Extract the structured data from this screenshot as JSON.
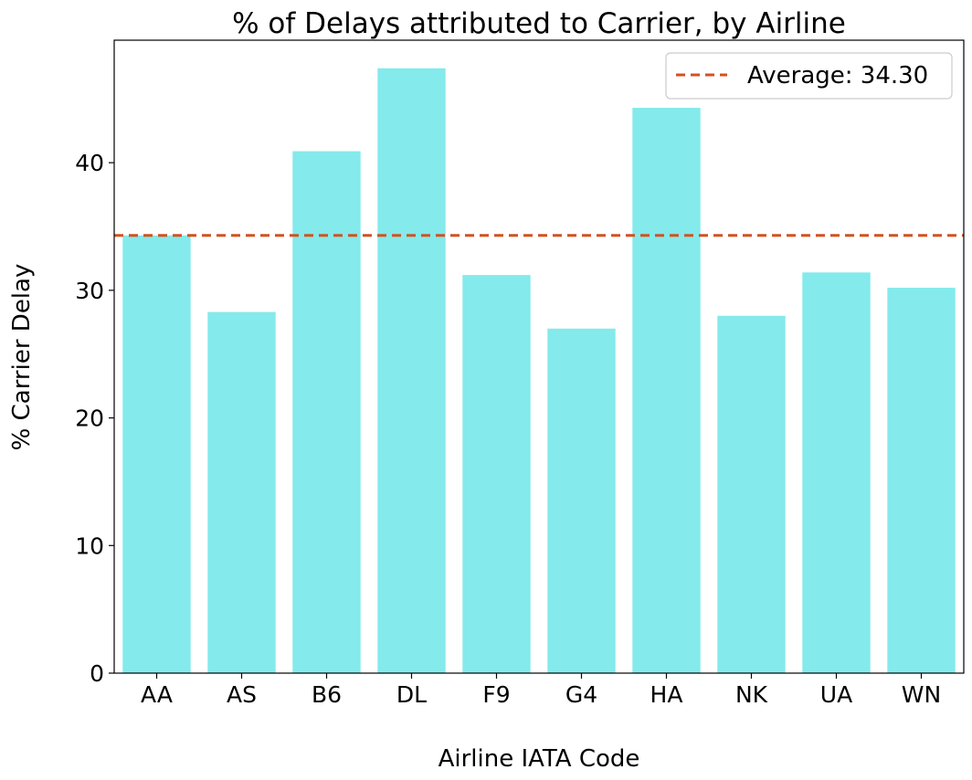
{
  "chart_data": {
    "type": "bar",
    "title": "% of Delays attributed to Carrier, by Airline",
    "xlabel": "Airline IATA Code",
    "ylabel": "% Carrier Delay",
    "categories": [
      "AA",
      "AS",
      "B6",
      "DL",
      "F9",
      "G4",
      "HA",
      "NK",
      "UA",
      "WN"
    ],
    "values": [
      34.3,
      28.3,
      40.9,
      47.4,
      31.2,
      27.0,
      44.3,
      28.0,
      31.4,
      30.2
    ],
    "ylim": [
      0,
      49.6
    ],
    "yticks": [
      0,
      10,
      20,
      30,
      40
    ],
    "reference_line": {
      "label": "Average: 34.30",
      "value": 34.3,
      "style": "dashed"
    },
    "bar_color": "#84EAEC",
    "line_color": "#D4511F",
    "grid": false,
    "legend_position": "top-right"
  }
}
